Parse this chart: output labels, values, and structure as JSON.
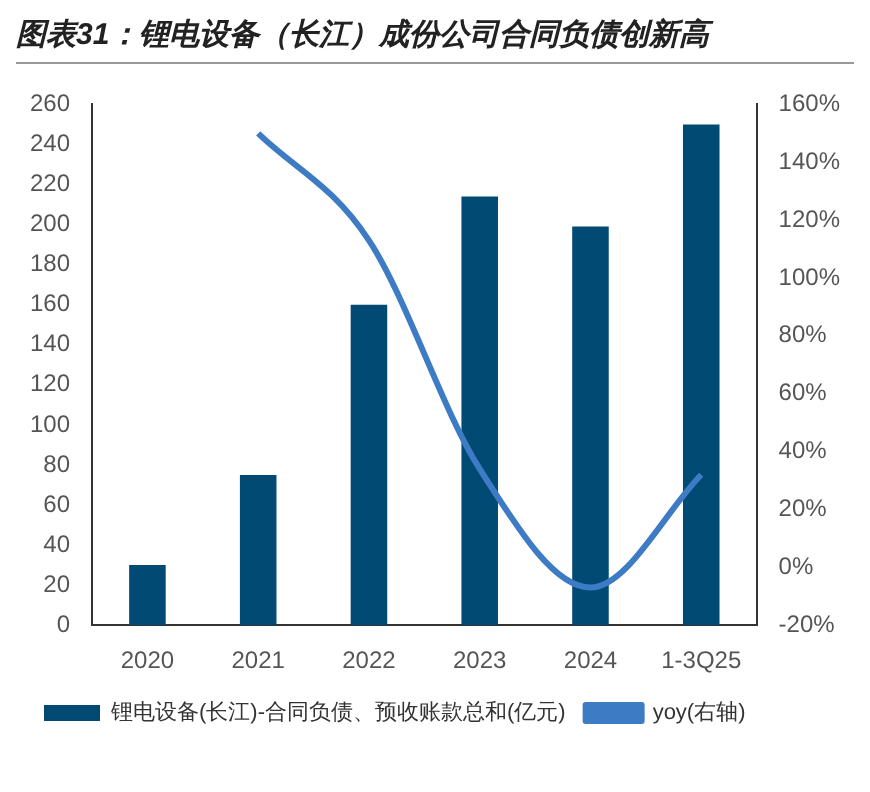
{
  "chart_data": {
    "type": "bar",
    "title": "图表31：锂电设备（长江）成份公司合同负债创新高",
    "categories": [
      "2020",
      "2021",
      "2022",
      "2023",
      "2024",
      "1-3Q25"
    ],
    "series": [
      {
        "name": "锂电设备(长江)-合同负债、预收账款总和(亿元)",
        "color": "#004a74",
        "values": [
          30,
          75,
          160,
          214,
          199,
          250
        ]
      },
      {
        "name": "yoy(右轴)",
        "type": "line",
        "axis": "y2",
        "color": "#3d7cc4",
        "values": [
          null,
          150,
          113,
          34,
          -7,
          32
        ]
      }
    ],
    "ylim": [
      0,
      260
    ],
    "yticks": [
      0,
      20,
      40,
      60,
      80,
      100,
      120,
      140,
      160,
      180,
      200,
      220,
      240,
      260
    ],
    "y2lim": [
      -20,
      160
    ],
    "y2ticks": [
      {
        "value": -20,
        "label": "-20%"
      },
      {
        "value": 0,
        "label": "0%"
      },
      {
        "value": 20,
        "label": "20%"
      },
      {
        "value": 40,
        "label": "40%"
      },
      {
        "value": 60,
        "label": "60%"
      },
      {
        "value": 80,
        "label": "80%"
      },
      {
        "value": 100,
        "label": "100%"
      },
      {
        "value": 120,
        "label": "120%"
      },
      {
        "value": 140,
        "label": "140%"
      },
      {
        "value": 160,
        "label": "160%"
      }
    ],
    "legend": "bottom",
    "grid": false,
    "marker": "none"
  }
}
